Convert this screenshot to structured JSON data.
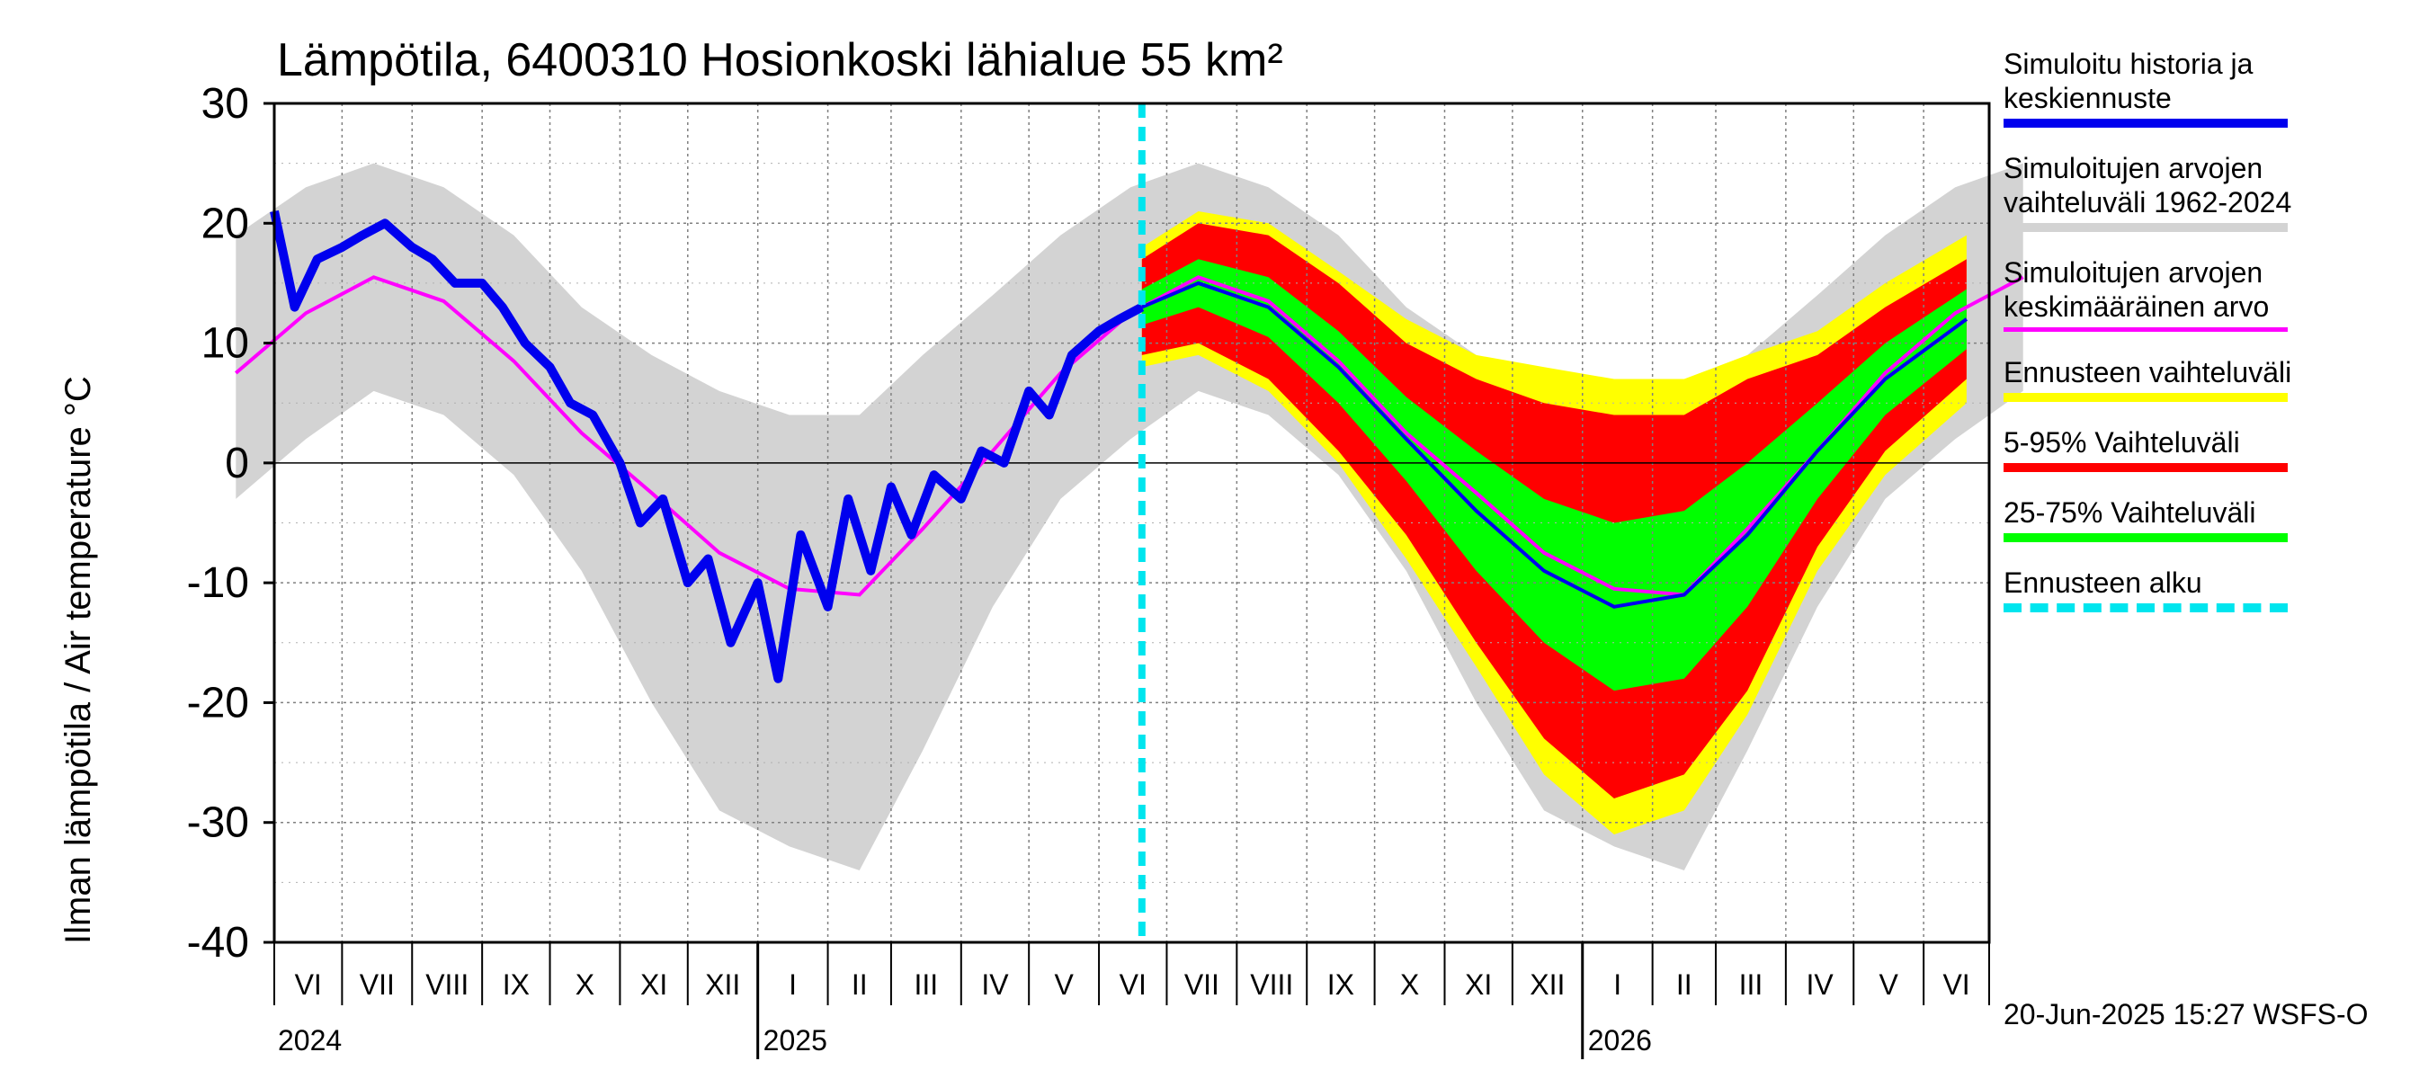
{
  "chart_data": {
    "type": "area",
    "title": "Lämpötila, 6400310 Hosionkoski lähialue 55 km²",
    "ylabel": "Ilman lämpötila / Air temperature   °C",
    "ylim": [
      -40,
      30
    ],
    "yticks": [
      30,
      20,
      10,
      0,
      -10,
      -20,
      -30,
      -40
    ],
    "month_labels": [
      "VI",
      "VII",
      "VIII",
      "IX",
      "X",
      "XI",
      "XII",
      "I",
      "II",
      "III",
      "IV",
      "V",
      "VI",
      "VII",
      "VIII",
      "IX",
      "X",
      "XI",
      "XII",
      "I",
      "II",
      "III",
      "IV",
      "V",
      "VI"
    ],
    "year_labels": [
      "2024",
      "2025",
      "2026"
    ],
    "forecast_start": "2025-06-20",
    "x_range": [
      "2024-06-01",
      "2026-06-30"
    ],
    "grid": true,
    "legend_placement": "right",
    "monthly_profile": {
      "months": [
        "Jun",
        "Jul",
        "Aug",
        "Sep",
        "Oct",
        "Nov",
        "Dec",
        "Jan",
        "Feb",
        "Mar",
        "Apr",
        "May",
        "Jun"
      ],
      "mean": [
        12.5,
        15.5,
        13.5,
        8.5,
        2.5,
        -2.5,
        -7.5,
        -10.5,
        -11,
        -5.5,
        1,
        7.5,
        12.5
      ],
      "range_min": [
        2,
        6,
        4,
        -1,
        -9,
        -20,
        -29,
        -32,
        -34,
        -24,
        -12,
        -3,
        2
      ],
      "range_max": [
        23,
        25,
        23,
        19,
        13,
        9,
        6,
        4,
        4,
        9,
        14,
        19,
        23
      ]
    },
    "history_series": [
      {
        "date": "2024-06-01",
        "value": 21
      },
      {
        "date": "2024-06-10",
        "value": 13
      },
      {
        "date": "2024-06-20",
        "value": 17
      },
      {
        "date": "2024-07-01",
        "value": 18
      },
      {
        "date": "2024-07-10",
        "value": 19
      },
      {
        "date": "2024-07-20",
        "value": 20
      },
      {
        "date": "2024-08-01",
        "value": 18
      },
      {
        "date": "2024-08-10",
        "value": 17
      },
      {
        "date": "2024-08-20",
        "value": 15
      },
      {
        "date": "2024-09-01",
        "value": 15
      },
      {
        "date": "2024-09-10",
        "value": 13
      },
      {
        "date": "2024-09-20",
        "value": 10
      },
      {
        "date": "2024-10-01",
        "value": 8
      },
      {
        "date": "2024-10-10",
        "value": 5
      },
      {
        "date": "2024-10-20",
        "value": 4
      },
      {
        "date": "2024-11-01",
        "value": 0
      },
      {
        "date": "2024-11-10",
        "value": -5
      },
      {
        "date": "2024-11-20",
        "value": -3
      },
      {
        "date": "2024-12-01",
        "value": -10
      },
      {
        "date": "2024-12-10",
        "value": -8
      },
      {
        "date": "2024-12-20",
        "value": -15
      },
      {
        "date": "2025-01-01",
        "value": -10
      },
      {
        "date": "2025-01-10",
        "value": -18
      },
      {
        "date": "2025-01-20",
        "value": -6
      },
      {
        "date": "2025-02-01",
        "value": -12
      },
      {
        "date": "2025-02-10",
        "value": -3
      },
      {
        "date": "2025-02-20",
        "value": -9
      },
      {
        "date": "2025-03-01",
        "value": -2
      },
      {
        "date": "2025-03-10",
        "value": -6
      },
      {
        "date": "2025-03-20",
        "value": -1
      },
      {
        "date": "2025-04-01",
        "value": -3
      },
      {
        "date": "2025-04-10",
        "value": 1
      },
      {
        "date": "2025-04-20",
        "value": 0
      },
      {
        "date": "2025-05-01",
        "value": 6
      },
      {
        "date": "2025-05-10",
        "value": 4
      },
      {
        "date": "2025-05-20",
        "value": 9
      },
      {
        "date": "2025-06-01",
        "value": 11
      },
      {
        "date": "2025-06-10",
        "value": 12
      },
      {
        "date": "2025-06-20",
        "value": 13
      }
    ],
    "forecast_median": [
      {
        "date": "2025-06-20",
        "value": 13
      },
      {
        "date": "2025-07-15",
        "value": 15
      },
      {
        "date": "2025-08-15",
        "value": 13
      },
      {
        "date": "2025-09-15",
        "value": 8
      },
      {
        "date": "2025-10-15",
        "value": 2
      },
      {
        "date": "2025-11-15",
        "value": -4
      },
      {
        "date": "2025-12-15",
        "value": -9
      },
      {
        "date": "2026-01-15",
        "value": -12
      },
      {
        "date": "2026-02-15",
        "value": -11
      },
      {
        "date": "2026-03-15",
        "value": -6
      },
      {
        "date": "2026-04-15",
        "value": 1
      },
      {
        "date": "2026-05-15",
        "value": 7
      },
      {
        "date": "2026-06-20",
        "value": 12
      }
    ],
    "forecast_p25_75_halfwidth": [
      1.5,
      2,
      2.5,
      3,
      3.5,
      5,
      6,
      7,
      7,
      6,
      4,
      3,
      2.5
    ],
    "forecast_p05_95_halfwidth": [
      4,
      5,
      6,
      7,
      8,
      11,
      14,
      16,
      15,
      13,
      8,
      6,
      5
    ],
    "forecast_range_halfwidth": [
      5,
      6,
      7,
      8,
      10,
      13,
      17,
      19,
      18,
      15,
      10,
      8,
      7
    ],
    "colors": {
      "history": "#0000ee",
      "range": "#d3d3d3",
      "mean": "#ff00ff",
      "forecast_range": "#ffff00",
      "p05_95": "#ff0000",
      "p25_75": "#00ff00",
      "forecast_start": "#00e5ee"
    }
  },
  "legend": {
    "items": [
      {
        "label": "Simuloitu historia ja\nkeskiennuste",
        "color": "#0000ee"
      },
      {
        "label": "Simuloitujen arvojen\nvaihteluväli 1962-2024",
        "color": "#d3d3d3"
      },
      {
        "label": "Simuloitujen arvojen\nkeskimääräinen arvo",
        "color": "#ff00ff"
      },
      {
        "label": "Ennusteen vaihteluväli",
        "color": "#ffff00"
      },
      {
        "label": "5-95% Vaihteluväli",
        "color": "#ff0000"
      },
      {
        "label": "25-75% Vaihteluväli",
        "color": "#00ff00"
      },
      {
        "label": "Ennusteen alku",
        "color": "#00e5ee"
      }
    ]
  },
  "footer": {
    "stamp": "20-Jun-2025 15:27 WSFS-O"
  }
}
